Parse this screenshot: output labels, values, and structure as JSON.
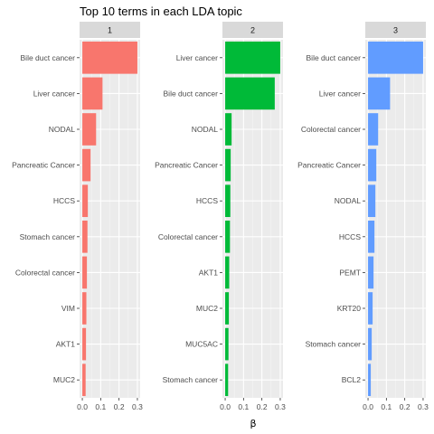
{
  "chart_data": {
    "type": "bar",
    "title": "Top 10 terms in each LDA topic",
    "xlabel": "β",
    "ylabel": "",
    "xlim": [
      0,
      0.3
    ],
    "xticks": [
      0.0,
      0.1,
      0.2,
      0.3
    ],
    "xtick_labels": [
      "0.0",
      "0.1",
      "0.2",
      "0.3"
    ],
    "grid": true,
    "legend": "none",
    "orientation": "horizontal",
    "facets": [
      {
        "strip": "1",
        "color": "#F8766D",
        "categories": [
          "Bile duct cancer",
          "Liver cancer",
          "NODAL",
          "Pancreatic Cancer",
          "HCCS",
          "Stomach cancer",
          "Colorectal cancer",
          "VIM",
          "AKT1",
          "MUC2"
        ],
        "values": [
          0.3,
          0.11,
          0.075,
          0.045,
          0.03,
          0.028,
          0.025,
          0.022,
          0.02,
          0.018
        ]
      },
      {
        "strip": "2",
        "color": "#00BA38",
        "categories": [
          "Liver cancer",
          "Bile duct cancer",
          "NODAL",
          "Pancreatic Cancer",
          "HCCS",
          "Colorectal cancer",
          "AKT1",
          "MUC2",
          "MUC5AC",
          "Stomach cancer"
        ],
        "values": [
          0.3,
          0.27,
          0.035,
          0.03,
          0.028,
          0.026,
          0.022,
          0.02,
          0.018,
          0.016
        ]
      },
      {
        "strip": "3",
        "color": "#619CFF",
        "categories": [
          "Bile duct cancer",
          "Liver cancer",
          "Colorectal cancer",
          "Pancreatic Cancer",
          "NODAL",
          "HCCS",
          "PEMT",
          "KRT20",
          "Stomach cancer",
          "BCL2"
        ],
        "values": [
          0.3,
          0.12,
          0.055,
          0.045,
          0.04,
          0.035,
          0.03,
          0.025,
          0.02,
          0.015
        ]
      }
    ]
  }
}
